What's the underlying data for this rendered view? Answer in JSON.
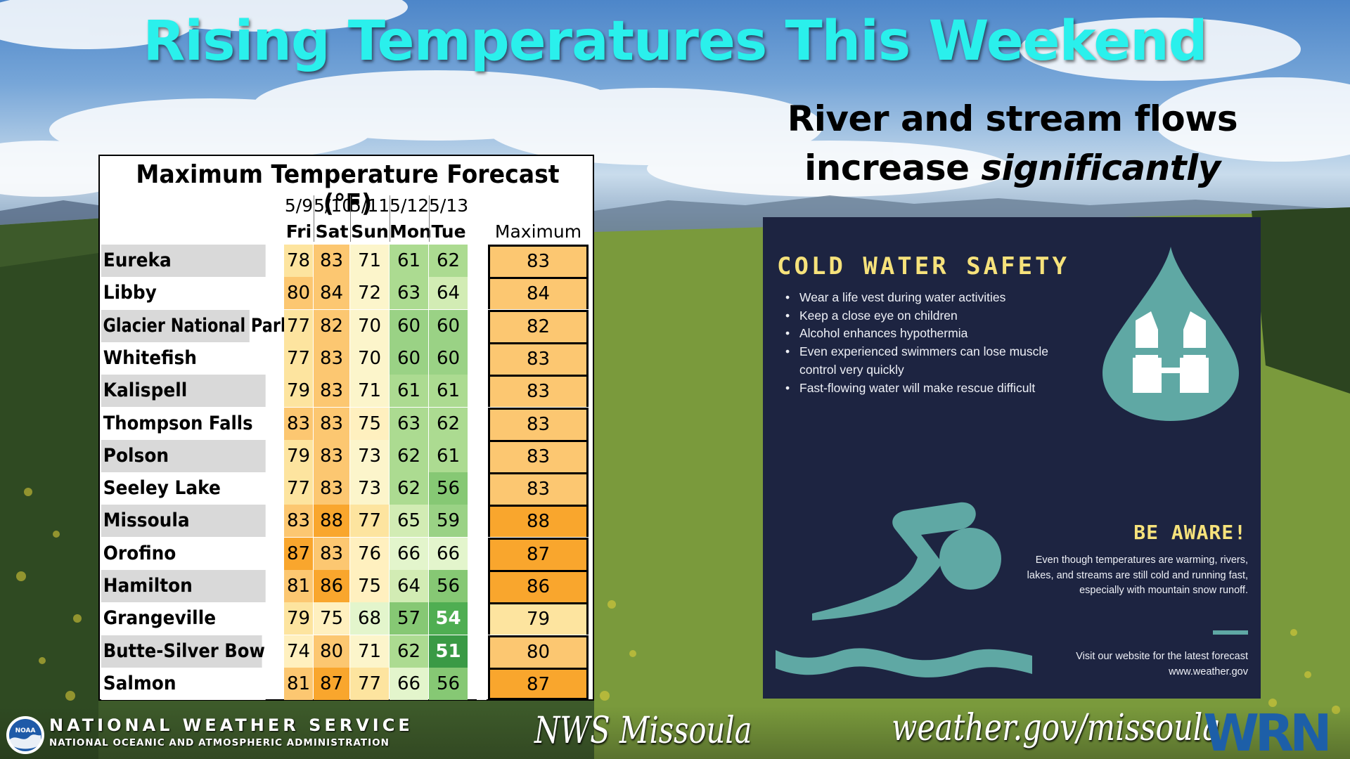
{
  "headline": "Rising Temperatures This Weekend",
  "river_flows": {
    "line1": "River and stream flows",
    "line2_plain": "increase ",
    "line2_emphasis": "significantly"
  },
  "forecast": {
    "title": "Maximum Temperature Forecast (°F)",
    "dates": [
      "5/9",
      "5/10",
      "5/11",
      "5/12",
      "5/13"
    ],
    "days": [
      "Fri",
      "Sat",
      "Sun",
      "Mon",
      "Tue"
    ],
    "max_header": "Maximum",
    "rows": [
      {
        "location": "Eureka",
        "temps": [
          "78",
          "83",
          "71",
          "61",
          "62"
        ],
        "max": "83"
      },
      {
        "location": "Libby",
        "temps": [
          "80",
          "84",
          "72",
          "63",
          "64"
        ],
        "max": "84"
      },
      {
        "location": "Glacier National Park",
        "temps": [
          "77",
          "82",
          "70",
          "60",
          "60"
        ],
        "max": "82"
      },
      {
        "location": "Whitefish",
        "temps": [
          "77",
          "83",
          "70",
          "60",
          "60"
        ],
        "max": "83"
      },
      {
        "location": "Kalispell",
        "temps": [
          "79",
          "83",
          "71",
          "61",
          "61"
        ],
        "max": "83"
      },
      {
        "location": "Thompson Falls",
        "temps": [
          "83",
          "83",
          "75",
          "63",
          "62"
        ],
        "max": "83"
      },
      {
        "location": "Polson",
        "temps": [
          "79",
          "83",
          "73",
          "62",
          "61"
        ],
        "max": "83"
      },
      {
        "location": "Seeley Lake",
        "temps": [
          "77",
          "83",
          "73",
          "62",
          "56"
        ],
        "max": "83"
      },
      {
        "location": "Missoula",
        "temps": [
          "83",
          "88",
          "77",
          "65",
          "59"
        ],
        "max": "88"
      },
      {
        "location": "Orofino",
        "temps": [
          "87",
          "83",
          "76",
          "66",
          "66"
        ],
        "max": "87"
      },
      {
        "location": "Hamilton",
        "temps": [
          "81",
          "86",
          "75",
          "64",
          "56"
        ],
        "max": "86"
      },
      {
        "location": "Grangeville",
        "temps": [
          "79",
          "75",
          "68",
          "57",
          "54"
        ],
        "max": "79"
      },
      {
        "location": "Butte-Silver Bow",
        "temps": [
          "74",
          "80",
          "71",
          "62",
          "51"
        ],
        "max": "80"
      },
      {
        "location": "Salmon",
        "temps": [
          "81",
          "87",
          "77",
          "66",
          "56"
        ],
        "max": "87"
      }
    ]
  },
  "safety": {
    "title": "COLD WATER SAFETY",
    "bullets": [
      "Wear a life vest during water activities",
      "Keep a close eye on children",
      "Alcohol  enhances hypothermia",
      "Even experienced swimmers can lose muscle control very quickly",
      "Fast-flowing water will make rescue difficult"
    ],
    "aware_title": "BE AWARE!",
    "aware_body": "Even though temperatures are warming, rivers, lakes, and streams are still cold and running fast, especially with mountain snow runoff.",
    "visit_line1": "Visit our website for the latest forecast",
    "visit_line2": "www.weather.gov",
    "icons": [
      "water-drop-life-vest-icon",
      "swimmer-icon",
      "waves-icon"
    ]
  },
  "footer": {
    "noaa_badge": "NOAA",
    "agency": "NATIONAL WEATHER SERVICE",
    "parent": "NATIONAL OCEANIC AND ATMOSPHERIC ADMINISTRATION",
    "office": "NWS Missoula",
    "website": "weather.gov/missoula",
    "wrn_logo": "WRN"
  },
  "colors": {
    "headline": "#2af0ec",
    "panel_bg": "#1d2441",
    "panel_accent": "#f6e27b",
    "icon_teal": "#5fa8a4"
  }
}
